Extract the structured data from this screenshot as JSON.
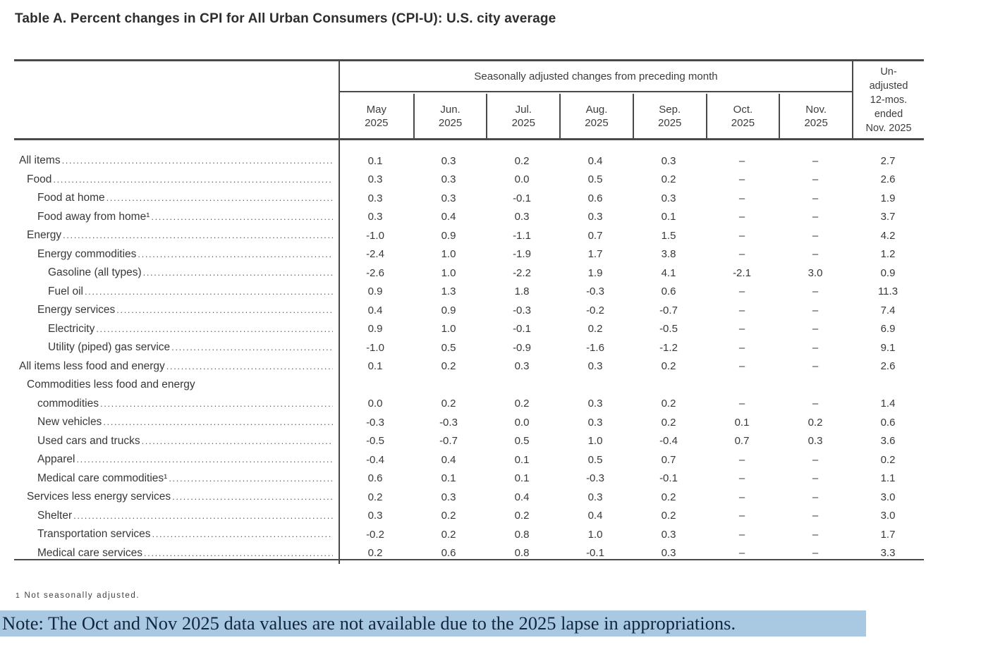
{
  "title": "Table A. Percent changes in CPI for All Urban Consumers (CPI-U): U.S. city average",
  "table": {
    "group_header": "Seasonally adjusted changes from preceding month",
    "unadjusted_header_lines": [
      "Un-",
      "adjusted",
      "12-mos.",
      "ended",
      "Nov. 2025"
    ],
    "month_columns": [
      {
        "month": "May",
        "year": "2025"
      },
      {
        "month": "Jun.",
        "year": "2025"
      },
      {
        "month": "Jul.",
        "year": "2025"
      },
      {
        "month": "Aug.",
        "year": "2025"
      },
      {
        "month": "Sep.",
        "year": "2025"
      },
      {
        "month": "Oct.",
        "year": "2025"
      },
      {
        "month": "Nov.",
        "year": "2025"
      }
    ],
    "rows": [
      {
        "label": "All items",
        "indent": 0,
        "values": [
          "0.1",
          "0.3",
          "0.2",
          "0.4",
          "0.3",
          "–",
          "–",
          "2.7"
        ]
      },
      {
        "label": "Food",
        "indent": 1,
        "values": [
          "0.3",
          "0.3",
          "0.0",
          "0.5",
          "0.2",
          "–",
          "–",
          "2.6"
        ]
      },
      {
        "label": "Food at home",
        "indent": 2,
        "values": [
          "0.3",
          "0.3",
          "-0.1",
          "0.6",
          "0.3",
          "–",
          "–",
          "1.9"
        ]
      },
      {
        "label": "Food away from home¹",
        "indent": 2,
        "values": [
          "0.3",
          "0.4",
          "0.3",
          "0.3",
          "0.1",
          "–",
          "–",
          "3.7"
        ]
      },
      {
        "label": "Energy",
        "indent": 1,
        "values": [
          "-1.0",
          "0.9",
          "-1.1",
          "0.7",
          "1.5",
          "–",
          "–",
          "4.2"
        ]
      },
      {
        "label": "Energy commodities",
        "indent": 2,
        "values": [
          "-2.4",
          "1.0",
          "-1.9",
          "1.7",
          "3.8",
          "–",
          "–",
          "1.2"
        ]
      },
      {
        "label": "Gasoline (all types)",
        "indent": 3,
        "values": [
          "-2.6",
          "1.0",
          "-2.2",
          "1.9",
          "4.1",
          "-2.1",
          "3.0",
          "0.9"
        ]
      },
      {
        "label": "Fuel oil",
        "indent": 3,
        "values": [
          "0.9",
          "1.3",
          "1.8",
          "-0.3",
          "0.6",
          "–",
          "–",
          "11.3"
        ]
      },
      {
        "label": "Energy services",
        "indent": 2,
        "values": [
          "0.4",
          "0.9",
          "-0.3",
          "-0.2",
          "-0.7",
          "–",
          "–",
          "7.4"
        ]
      },
      {
        "label": "Electricity",
        "indent": 3,
        "values": [
          "0.9",
          "1.0",
          "-0.1",
          "0.2",
          "-0.5",
          "–",
          "–",
          "6.9"
        ]
      },
      {
        "label": "Utility (piped) gas service",
        "indent": 3,
        "values": [
          "-1.0",
          "0.5",
          "-0.9",
          "-1.6",
          "-1.2",
          "–",
          "–",
          "9.1"
        ]
      },
      {
        "label": "All items less food and energy",
        "indent": 0,
        "values": [
          "0.1",
          "0.2",
          "0.3",
          "0.3",
          "0.2",
          "–",
          "–",
          "2.6"
        ]
      },
      {
        "label": "Commodities less food and energy",
        "label2": "commodities",
        "indent": 1,
        "values": [
          "0.0",
          "0.2",
          "0.2",
          "0.3",
          "0.2",
          "–",
          "–",
          "1.4"
        ]
      },
      {
        "label": "New vehicles",
        "indent": 2,
        "values": [
          "-0.3",
          "-0.3",
          "0.0",
          "0.3",
          "0.2",
          "0.1",
          "0.2",
          "0.6"
        ]
      },
      {
        "label": "Used cars and trucks",
        "indent": 2,
        "values": [
          "-0.5",
          "-0.7",
          "0.5",
          "1.0",
          "-0.4",
          "0.7",
          "0.3",
          "3.6"
        ]
      },
      {
        "label": "Apparel",
        "indent": 2,
        "values": [
          "-0.4",
          "0.4",
          "0.1",
          "0.5",
          "0.7",
          "–",
          "–",
          "0.2"
        ]
      },
      {
        "label": "Medical care commodities¹",
        "indent": 2,
        "values": [
          "0.6",
          "0.1",
          "0.1",
          "-0.3",
          "-0.1",
          "–",
          "–",
          "1.1"
        ]
      },
      {
        "label": "Services less energy services",
        "indent": 1,
        "values": [
          "0.2",
          "0.3",
          "0.4",
          "0.3",
          "0.2",
          "–",
          "–",
          "3.0"
        ]
      },
      {
        "label": "Shelter",
        "indent": 2,
        "values": [
          "0.3",
          "0.2",
          "0.2",
          "0.4",
          "0.2",
          "–",
          "–",
          "3.0"
        ]
      },
      {
        "label": "Transportation services",
        "indent": 2,
        "values": [
          "-0.2",
          "0.2",
          "0.8",
          "1.0",
          "0.3",
          "–",
          "–",
          "1.7"
        ]
      },
      {
        "label": "Medical care services",
        "indent": 2,
        "values": [
          "0.2",
          "0.6",
          "0.8",
          "-0.1",
          "0.3",
          "–",
          "–",
          "3.3"
        ]
      }
    ]
  },
  "footnote": {
    "marker": "1",
    "text": "Not seasonally adjusted."
  },
  "note": "Note: The Oct and Nov 2025 data values are not available due to the 2025 lapse in appropriations.",
  "colors": {
    "note_highlight": "#a9c9e2",
    "note_text": "#122640",
    "border": "#4a4a4a",
    "text": "#383838"
  }
}
